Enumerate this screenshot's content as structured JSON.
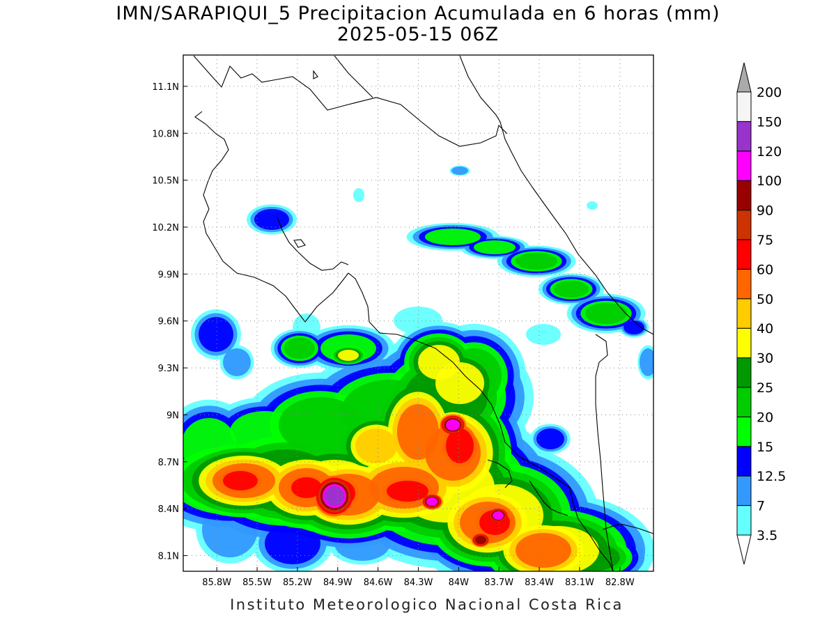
{
  "title": {
    "line1": "IMN/SARAPIQUI_5 Precipitacion Acumulada en 6 horas (mm)",
    "line2": "2025-05-15 06Z"
  },
  "footer": "Instituto Meteorologico Nacional Costa Rica",
  "map": {
    "lon_range": [
      -86.05,
      -82.55
    ],
    "lat_range": [
      8.0,
      11.3
    ],
    "x_ticks": [
      "85.8W",
      "85.5W",
      "85.2W",
      "84.9W",
      "84.6W",
      "84.3W",
      "84W",
      "83.7W",
      "83.4W",
      "83.1W",
      "82.8W"
    ],
    "y_ticks": [
      "8.1N",
      "8.4N",
      "8.7N",
      "9N",
      "9.3N",
      "9.6N",
      "9.9N",
      "10.2N",
      "10.5N",
      "10.8N",
      "11.1N"
    ],
    "gridlines": "dotted"
  },
  "colorbar": {
    "unit": "mm",
    "labels": [
      "3.5",
      "7",
      "12.5",
      "15",
      "20",
      "25",
      "30",
      "40",
      "50",
      "60",
      "75",
      "90",
      "100",
      "120",
      "150",
      "200"
    ],
    "colors": [
      "#66ffff",
      "#3399ff",
      "#0000ff",
      "#00ff00",
      "#00cc00",
      "#009900",
      "#ffff00",
      "#ffcc00",
      "#ff6600",
      "#ff0000",
      "#cc3300",
      "#990000",
      "#ff00ff",
      "#9933cc",
      "#f5f5f5"
    ],
    "over_color": "#aaaaaa",
    "under_color": "#ffffff"
  }
}
